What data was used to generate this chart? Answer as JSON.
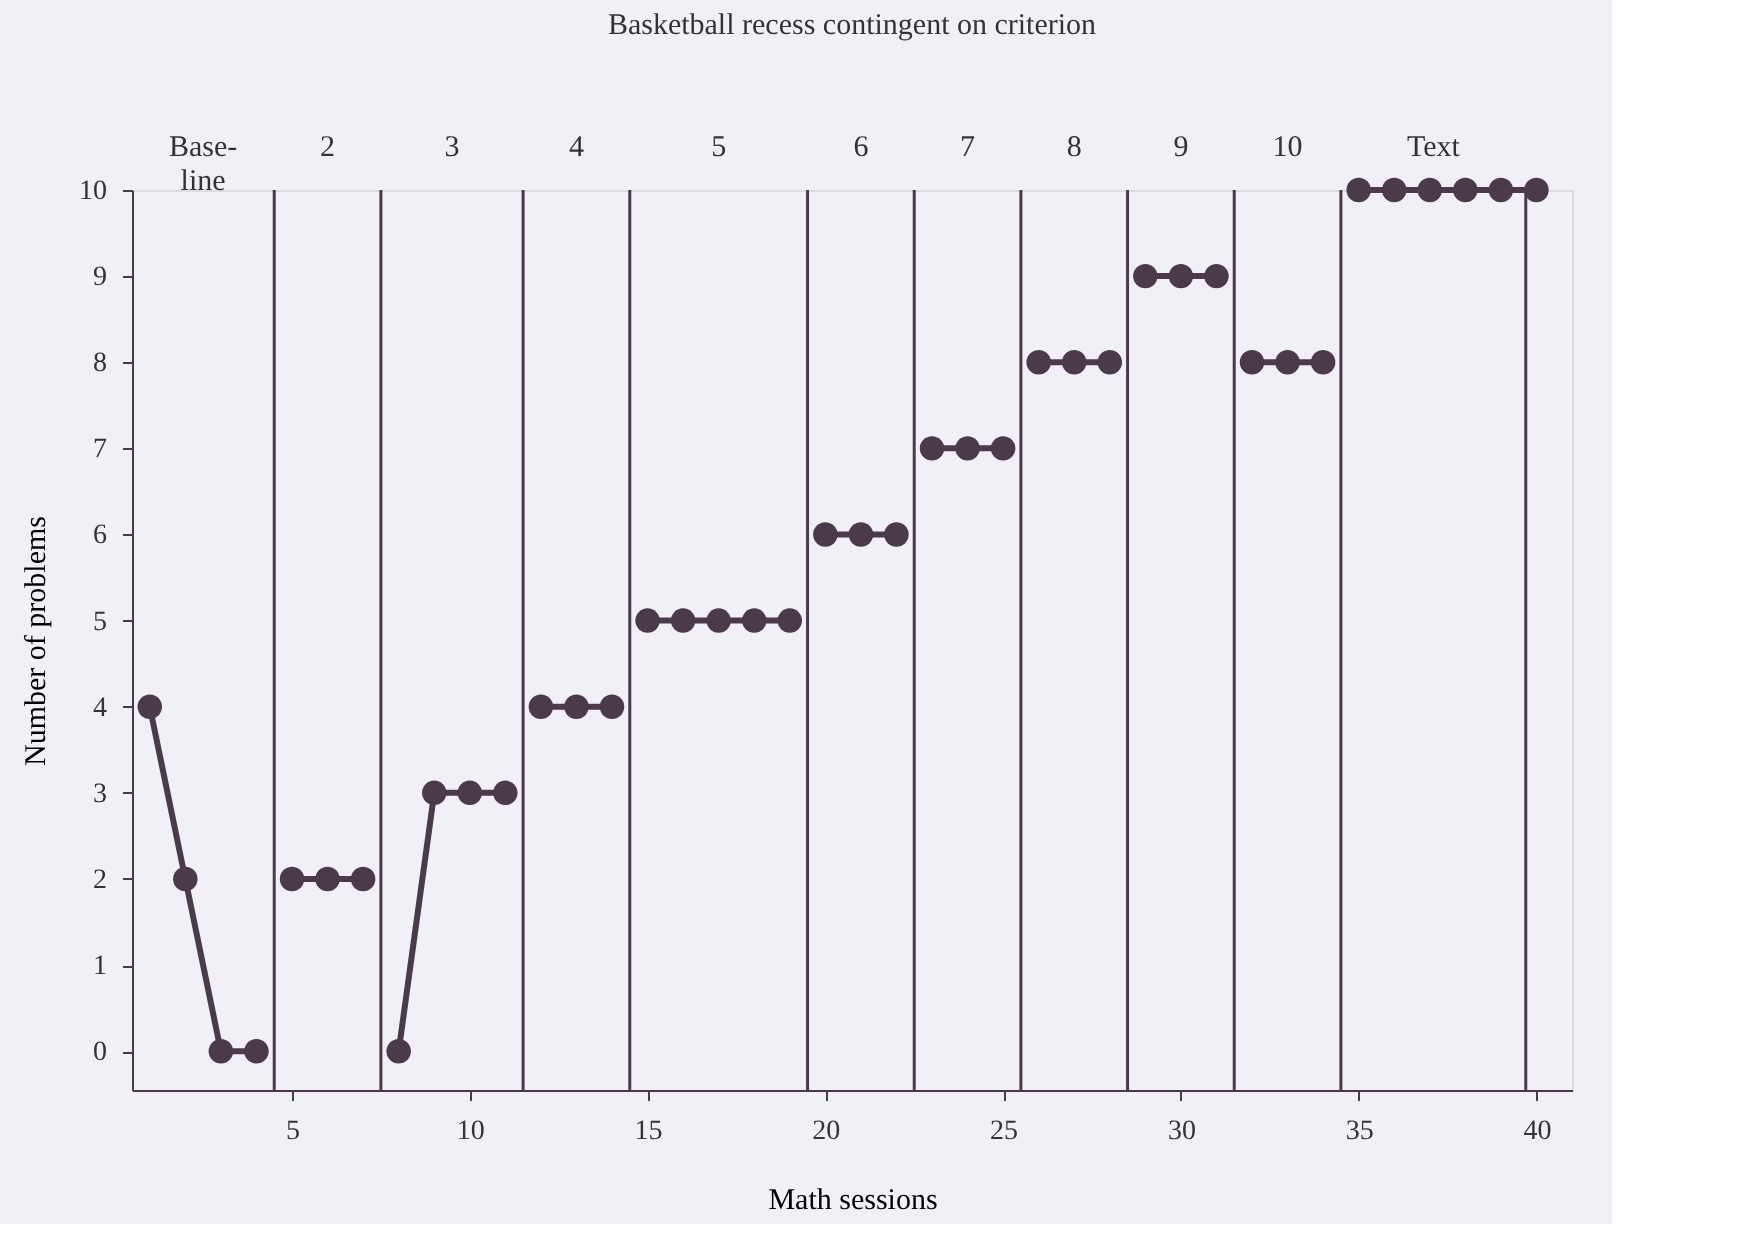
{
  "chart_data": {
    "type": "line",
    "title": "Basketball recess contingent on criterion",
    "xlabel": "Math sessions",
    "ylabel": "Number of problems",
    "series": [
      {
        "color": "#4b3b4a",
        "x": [
          1,
          2,
          3,
          4
        ],
        "values": [
          4,
          2,
          0,
          0
        ]
      },
      {
        "color": "#4b3b4a",
        "x": [
          5,
          6,
          7
        ],
        "values": [
          2,
          2,
          2
        ]
      },
      {
        "color": "#4b3b4a",
        "x": [
          8,
          9,
          10,
          11
        ],
        "values": [
          0,
          3,
          3,
          3
        ]
      },
      {
        "color": "#4b3b4a",
        "x": [
          12,
          13,
          14
        ],
        "values": [
          4,
          4,
          4
        ]
      },
      {
        "color": "#4b3b4a",
        "x": [
          15,
          16,
          17,
          18,
          19
        ],
        "values": [
          5,
          5,
          5,
          5,
          5
        ]
      },
      {
        "color": "#4b3b4a",
        "x": [
          20,
          21,
          22
        ],
        "values": [
          6,
          6,
          6
        ]
      },
      {
        "color": "#4b3b4a",
        "x": [
          23,
          24,
          25
        ],
        "values": [
          7,
          7,
          7
        ]
      },
      {
        "color": "#4b3b4a",
        "x": [
          26,
          27,
          28
        ],
        "values": [
          8,
          8,
          8
        ]
      },
      {
        "color": "#4b3b4a",
        "x": [
          29,
          30,
          31
        ],
        "values": [
          9,
          9,
          9
        ]
      },
      {
        "color": "#4b3b4a",
        "x": [
          32,
          33,
          34
        ],
        "values": [
          8,
          8,
          8
        ]
      },
      {
        "color": "#4b3b4a",
        "x": [
          35,
          36,
          37,
          38,
          39,
          40
        ],
        "values": [
          10,
          10,
          10,
          10,
          10,
          10
        ]
      }
    ],
    "ref_lines": [
      {
        "axis": "x",
        "value": 4.5
      },
      {
        "axis": "x",
        "value": 7.5
      },
      {
        "axis": "x",
        "value": 11.5
      },
      {
        "axis": "x",
        "value": 14.5
      },
      {
        "axis": "x",
        "value": 19.5
      },
      {
        "axis": "x",
        "value": 22.5
      },
      {
        "axis": "x",
        "value": 25.5
      },
      {
        "axis": "x",
        "value": 28.5
      },
      {
        "axis": "x",
        "value": 31.5
      },
      {
        "axis": "x",
        "value": 34.5
      },
      {
        "axis": "x",
        "value": 39.7
      }
    ],
    "annotations": [
      "Base-\nline",
      "2",
      "3",
      "4",
      "5",
      "6",
      "7",
      "8",
      "9",
      "10",
      "Text"
    ],
    "xlim": [
      0.5,
      41
    ],
    "xticks": [
      5,
      10,
      15,
      20,
      25,
      30,
      35,
      40
    ],
    "ylim": [
      -0.45,
      10
    ],
    "yticks": [
      0,
      1,
      2,
      3,
      4,
      5,
      6,
      7,
      8,
      9,
      10
    ],
    "grid": false,
    "legend": false,
    "marker": "circle",
    "line_style": "solid"
  }
}
